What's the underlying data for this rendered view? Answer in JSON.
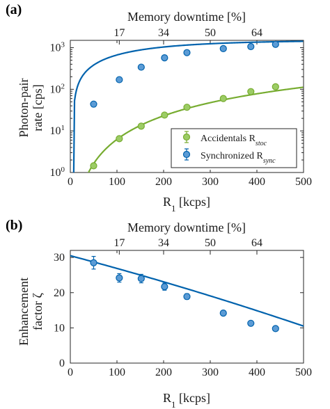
{
  "chart_data": [
    {
      "panel": "(a)",
      "type": "scatter",
      "top_xlabel": "Memory downtime [%]",
      "top_ticks": [
        "17",
        "34",
        "50",
        "64"
      ],
      "top_tick_positions": [
        105,
        200,
        300,
        400
      ],
      "xlabel": "R1 [kcps]",
      "xlabel_main": "R",
      "xlabel_sub": "1",
      "xlabel_rest": " [kcps]",
      "ylabel_line1": "Photon-pair",
      "ylabel_line2": "rate [cps]",
      "xlim": [
        0,
        500
      ],
      "ylim": [
        1,
        1500
      ],
      "yscale": "log",
      "xticks": [
        0,
        100,
        200,
        300,
        400,
        500
      ],
      "yticks": [
        {
          "value": 1,
          "base": "10",
          "exp": "0"
        },
        {
          "value": 10,
          "base": "10",
          "exp": "1"
        },
        {
          "value": 100,
          "base": "10",
          "exp": "2"
        },
        {
          "value": 1000,
          "base": "10",
          "exp": "3"
        }
      ],
      "legend": {
        "position": "lower-right",
        "entries": [
          {
            "label_main": "Accidentals R",
            "label_sub": "stoc",
            "color": "#77ac30"
          },
          {
            "label_main": "Synchronized R",
            "label_sub": "sync",
            "color": "#0062ad"
          }
        ]
      },
      "series": [
        {
          "color": "#0062ad",
          "marker_fill": "#5b9bd5",
          "x": [
            50,
            105,
            152,
            202,
            250,
            328,
            387,
            440
          ],
          "y": [
            44,
            170,
            340,
            570,
            760,
            950,
            1060,
            1200
          ],
          "yerr": [
            6,
            15,
            25,
            45,
            55,
            70,
            80,
            120
          ]
        },
        {
          "color": "#77ac30",
          "marker_fill": "#9ccc65",
          "x": [
            50,
            105,
            152,
            202,
            250,
            328,
            387,
            440
          ],
          "y": [
            1.45,
            6.5,
            13,
            24,
            37,
            60,
            88,
            115
          ],
          "yerr": [
            0.15,
            0.5,
            1,
            1.5,
            2.5,
            4,
            6,
            8
          ]
        }
      ],
      "fit_curves": [
        {
          "series_color": "#0062ad",
          "model": "sync"
        },
        {
          "series_color": "#77ac30",
          "model": "stoc"
        }
      ]
    },
    {
      "panel": "(b)",
      "type": "scatter",
      "top_xlabel": "Memory downtime [%]",
      "top_ticks": [
        "17",
        "34",
        "50",
        "64"
      ],
      "top_tick_positions": [
        105,
        200,
        300,
        400
      ],
      "xlabel": "R1 [kcps]",
      "xlabel_main": "R",
      "xlabel_sub": "1",
      "xlabel_rest": " [kcps]",
      "ylabel_line1": "Enhancement",
      "ylabel_line2": "factor ζ",
      "xlim": [
        0,
        500
      ],
      "ylim": [
        0,
        32
      ],
      "yscale": "linear",
      "xticks": [
        0,
        100,
        200,
        300,
        400,
        500
      ],
      "yticks_linear": [
        0,
        10,
        20,
        30
      ],
      "series": [
        {
          "color": "#0062ad",
          "marker_fill": "#5b9bd5",
          "x": [
            50,
            105,
            152,
            202,
            250,
            328,
            387,
            440
          ],
          "y": [
            28.5,
            24.2,
            24.0,
            21.7,
            18.9,
            14.2,
            11.3,
            9.8
          ],
          "yerr": [
            1.8,
            1.2,
            1.2,
            1.0,
            0.8,
            0.7,
            0.6,
            0.5
          ]
        }
      ],
      "fit_curve": {
        "x0": 0,
        "y0": 30.5,
        "x1": 500,
        "y1": 10.5,
        "color": "#0062ad"
      }
    }
  ]
}
